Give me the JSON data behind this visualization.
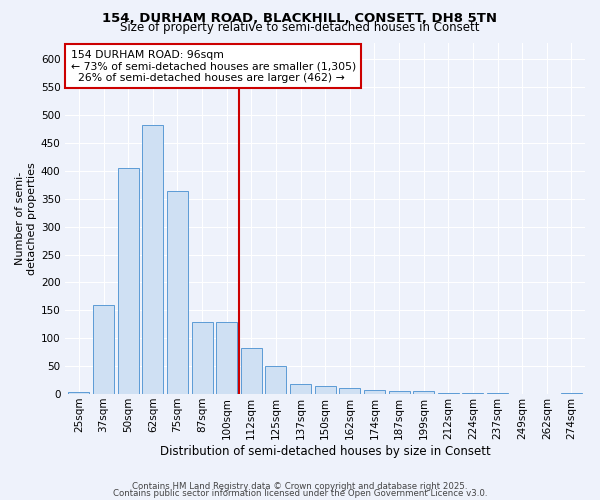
{
  "title_line1": "154, DURHAM ROAD, BLACKHILL, CONSETT, DH8 5TN",
  "title_line2": "Size of property relative to semi-detached houses in Consett",
  "xlabel": "Distribution of semi-detached houses by size in Consett",
  "ylabel": "Number of semi-\ndetached properties",
  "categories": [
    "25sqm",
    "37sqm",
    "50sqm",
    "62sqm",
    "75sqm",
    "87sqm",
    "100sqm",
    "112sqm",
    "125sqm",
    "137sqm",
    "150sqm",
    "162sqm",
    "174sqm",
    "187sqm",
    "199sqm",
    "212sqm",
    "224sqm",
    "237sqm",
    "249sqm",
    "262sqm",
    "274sqm"
  ],
  "values": [
    3,
    160,
    405,
    483,
    363,
    130,
    130,
    83,
    50,
    18,
    15,
    10,
    7,
    5,
    5,
    2,
    2,
    1,
    0,
    0,
    1
  ],
  "bar_color": "#cfe0f3",
  "bar_edge_color": "#5b9bd5",
  "vline_color": "#cc0000",
  "vline_x": 6.5,
  "annotation_label": "154 DURHAM ROAD: 96sqm",
  "smaller_pct": 73,
  "smaller_count": "1,305",
  "larger_pct": 26,
  "larger_count": "462",
  "annotation_box_edge_color": "#cc0000",
  "ylim": [
    0,
    630
  ],
  "yticks": [
    0,
    50,
    100,
    150,
    200,
    250,
    300,
    350,
    400,
    450,
    500,
    550,
    600
  ],
  "footer1": "Contains HM Land Registry data © Crown copyright and database right 2025.",
  "footer2": "Contains public sector information licensed under the Open Government Licence v3.0.",
  "bg_color": "#eef2fb",
  "grid_color": "#ffffff",
  "title1_fontsize": 9.5,
  "title2_fontsize": 8.5,
  "ylabel_fontsize": 8,
  "xlabel_fontsize": 8.5,
  "tick_fontsize": 7.5,
  "footer_fontsize": 6.2,
  "ann_fontsize": 7.8
}
